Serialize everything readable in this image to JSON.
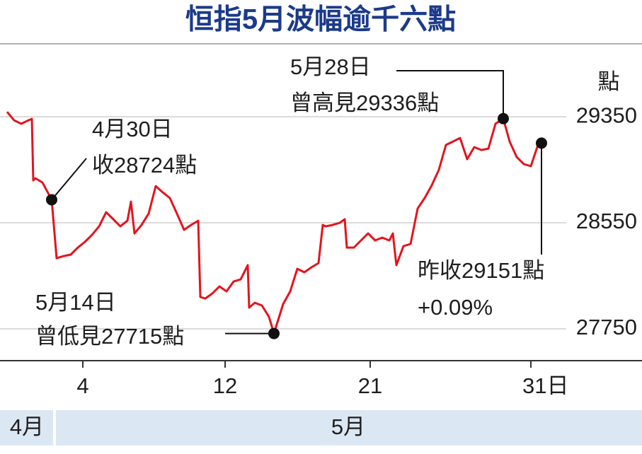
{
  "chart_data": {
    "type": "line",
    "title": "恒指5月波幅逾千六點",
    "y_unit": "點",
    "x": [
      0,
      1,
      2,
      3,
      3.5,
      3.7,
      4,
      5,
      6.3,
      7,
      8,
      9,
      10,
      11,
      12,
      13,
      14,
      15,
      16,
      17,
      17.5,
      18,
      19,
      20,
      21,
      22,
      23,
      24,
      25,
      26,
      27,
      27.3,
      28,
      29,
      30,
      31,
      32,
      33,
      34,
      34.2,
      35,
      36,
      37,
      37.7,
      38,
      39,
      40,
      41,
      42,
      43,
      44,
      44.6,
      45,
      46,
      47,
      47.7,
      48,
      49,
      50,
      51,
      52,
      53,
      54,
      54.5,
      55,
      56,
      57,
      58,
      59,
      60,
      61,
      62,
      63,
      64,
      65,
      66,
      67,
      68,
      69,
      70.1,
      71,
      72,
      73,
      74,
      75,
      75.5
    ],
    "series": [
      {
        "color": "#e3141d",
        "values": [
          29387,
          29323,
          29297,
          29323,
          29334,
          28870,
          28886,
          28854,
          28724,
          28283,
          28299,
          28310,
          28363,
          28406,
          28459,
          28523,
          28630,
          28577,
          28523,
          28566,
          28710,
          28470,
          28534,
          28619,
          28827,
          28779,
          28737,
          28619,
          28497,
          28534,
          28566,
          27990,
          27979,
          28017,
          28070,
          28033,
          28107,
          28123,
          28230,
          27910,
          27947,
          27926,
          27841,
          27715,
          27766,
          27937,
          28033,
          28203,
          28177,
          28214,
          28246,
          28534,
          28523,
          28534,
          28550,
          28577,
          28363,
          28363,
          28417,
          28470,
          28417,
          28438,
          28417,
          28470,
          28230,
          28374,
          28390,
          28657,
          28737,
          28833,
          28950,
          29137,
          29163,
          29190,
          29030,
          29121,
          29099,
          29110,
          29297,
          29336,
          29163,
          29046,
          28993,
          28977,
          29137,
          29151
        ]
      }
    ],
    "xlim": [
      -1,
      89.7
    ],
    "xticks": [
      {
        "value": 10.7,
        "label": "4"
      },
      {
        "value": 30.8,
        "label": "12"
      },
      {
        "value": 51.3,
        "label": "21"
      },
      {
        "value": 74,
        "label": "31日"
      }
    ],
    "ylim": [
      27510,
      29900
    ],
    "yticks": [
      27750,
      28550,
      29350
    ],
    "grid": true,
    "annotations": [
      [
        "4月30日",
        "收28724點"
      ],
      [
        "5月14日",
        "曾低見27715點"
      ],
      [
        "5月28日",
        "曾高見29336點"
      ],
      [
        "昨收29151點",
        "+0.09%"
      ]
    ],
    "month_bar": [
      "4月",
      "5月"
    ]
  }
}
